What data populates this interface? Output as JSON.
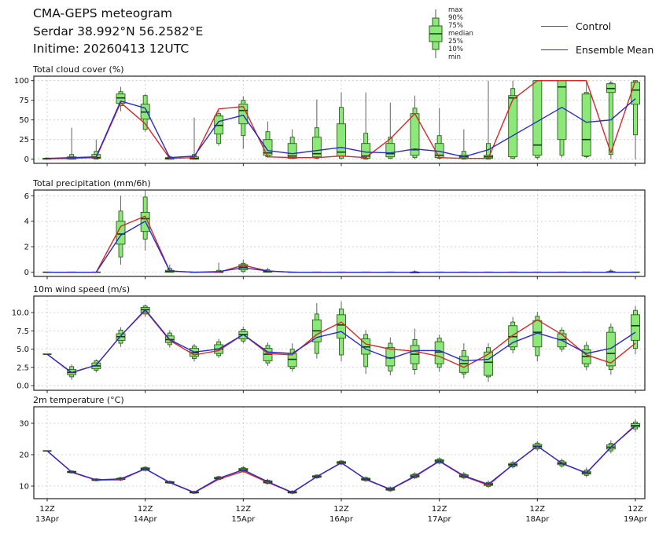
{
  "header": {
    "line1": "CMA-GEPS meteogram",
    "line2": "Serdar 38.992°N 56.2582°E",
    "line3": "Initime: 20260413 12UTC"
  },
  "legend": {
    "box_labels": [
      "max",
      "90%",
      "75%",
      "median",
      "25%",
      "10%",
      "min"
    ],
    "entries": [
      {
        "label": "Control",
        "color": "#d42a2a"
      },
      {
        "label": "Ensemble Mean",
        "color": "#2b2bc8"
      }
    ]
  },
  "colors": {
    "box_fill": "#8ce878",
    "box_edge": "#2f5d1f",
    "median": "#123c12",
    "whisker": "#707070",
    "control": "#d42a2a",
    "mean": "#2b2bc8",
    "grid": "#c9c9c9"
  },
  "x_axis": {
    "n_points": 25,
    "tick_indices": [
      0,
      4,
      8,
      12,
      16,
      20,
      24
    ],
    "tick_top": "12Z",
    "tick_days": [
      "13Apr",
      "14Apr",
      "15Apr",
      "16Apr",
      "17Apr",
      "18Apr",
      "19Apr"
    ]
  },
  "chart_data": [
    {
      "id": "cloud",
      "type": "box+line",
      "title": "Total cloud cover (%)",
      "ylabel": "%",
      "ylim": [
        -5.3,
        105.7
      ],
      "yticks": [
        {
          "v": 0,
          "label": "0"
        },
        {
          "v": 25,
          "label": "25"
        },
        {
          "v": 50,
          "label": "50"
        },
        {
          "v": 75,
          "label": "75"
        },
        {
          "v": 100,
          "label": "100"
        }
      ],
      "box_order": [
        "min",
        "p10",
        "p25",
        "median",
        "p75",
        "p90",
        "max"
      ],
      "boxes": [
        [
          0,
          0,
          0,
          0.5,
          1,
          1.5,
          2
        ],
        [
          0,
          0,
          0,
          1,
          3,
          6,
          40
        ],
        [
          0,
          0,
          1,
          2,
          6,
          10,
          25
        ],
        [
          61,
          68,
          71,
          78,
          83,
          86,
          92
        ],
        [
          35,
          38,
          51,
          60,
          70,
          81,
          83
        ],
        [
          0,
          0,
          0,
          1,
          2,
          3,
          5
        ],
        [
          0,
          0,
          0,
          1,
          3,
          6,
          53
        ],
        [
          17,
          20,
          32,
          43,
          55,
          58,
          62
        ],
        [
          13,
          30,
          45,
          62,
          70,
          75,
          80
        ],
        [
          2,
          3,
          5,
          8,
          25,
          35,
          48
        ],
        [
          0,
          1,
          1,
          4,
          20,
          28,
          38
        ],
        [
          0,
          1,
          3,
          7,
          28,
          40,
          76
        ],
        [
          0,
          1,
          4,
          9,
          45,
          66,
          85
        ],
        [
          0,
          0,
          1,
          4,
          20,
          33,
          85
        ],
        [
          0,
          1,
          3,
          7,
          20,
          28,
          72
        ],
        [
          0,
          2,
          5,
          12,
          58,
          65,
          81
        ],
        [
          0,
          1,
          2,
          5,
          20,
          30,
          65
        ],
        [
          0,
          0,
          1,
          3,
          5,
          10,
          38
        ],
        [
          0,
          0,
          1,
          3,
          5,
          20,
          100
        ],
        [
          0,
          1,
          3,
          78,
          81,
          90,
          100
        ],
        [
          0,
          2,
          5,
          18,
          100,
          100,
          100
        ],
        [
          2,
          5,
          25,
          92,
          100,
          100,
          100
        ],
        [
          1,
          3,
          4,
          25,
          83,
          85,
          100
        ],
        [
          0,
          6,
          85,
          90,
          96,
          97,
          100
        ],
        [
          0,
          31,
          70,
          88,
          98,
          100,
          100
        ]
      ],
      "series": [
        {
          "name": "Control",
          "values": [
            0.5,
            1,
            2,
            72,
            45,
            1,
            2,
            64,
            67,
            3,
            2,
            2,
            4,
            2,
            26,
            58,
            2,
            1,
            1,
            76,
            100,
            100,
            100,
            8,
            100
          ]
        },
        {
          "name": "Ensemble Mean",
          "values": [
            1,
            2,
            3,
            74,
            65,
            2,
            4,
            48,
            56,
            11,
            7,
            11,
            15,
            9,
            8,
            13,
            10,
            3,
            12,
            30,
            48,
            66,
            47,
            50,
            77
          ]
        }
      ]
    },
    {
      "id": "precip",
      "type": "box+line",
      "title": "Total precipitation (mm/6h)",
      "ylabel": "mm/6h",
      "ylim": [
        -0.33,
        6.45
      ],
      "yticks": [
        {
          "v": 0,
          "label": "0"
        },
        {
          "v": 2,
          "label": "2"
        },
        {
          "v": 4,
          "label": "4"
        },
        {
          "v": 6,
          "label": "6"
        }
      ],
      "box_order": [
        "min",
        "p10",
        "p25",
        "median",
        "p75",
        "p90",
        "max"
      ],
      "boxes": [
        [
          0,
          0,
          0,
          0,
          0,
          0,
          0
        ],
        [
          0,
          0,
          0,
          0,
          0,
          0,
          0
        ],
        [
          0,
          0,
          0,
          0,
          0,
          0,
          0
        ],
        [
          0.6,
          1.2,
          2.2,
          3,
          4,
          4.8,
          6
        ],
        [
          1.7,
          2.6,
          3.2,
          4.2,
          4.7,
          5.9,
          6.4
        ],
        [
          0,
          0,
          0,
          0.05,
          0.15,
          0.3,
          0.6
        ],
        [
          0,
          0,
          0,
          0,
          0,
          0,
          0
        ],
        [
          0,
          0,
          0,
          0,
          0.05,
          0.15,
          0.75
        ],
        [
          0,
          0.05,
          0.2,
          0.4,
          0.6,
          0.7,
          1.0
        ],
        [
          0,
          0,
          0,
          0.05,
          0.1,
          0.2,
          0.35
        ],
        [
          0,
          0,
          0,
          0,
          0,
          0,
          0
        ],
        [
          0,
          0,
          0,
          0,
          0,
          0,
          0
        ],
        [
          0,
          0,
          0,
          0,
          0,
          0,
          0
        ],
        [
          0,
          0,
          0,
          0,
          0,
          0,
          0
        ],
        [
          0,
          0,
          0,
          0,
          0,
          0,
          0
        ],
        [
          0,
          0,
          0,
          0,
          0,
          0.05,
          0.15
        ],
        [
          0,
          0,
          0,
          0,
          0,
          0,
          0
        ],
        [
          0,
          0,
          0,
          0,
          0,
          0,
          0
        ],
        [
          0,
          0,
          0,
          0,
          0,
          0,
          0
        ],
        [
          0,
          0,
          0,
          0,
          0,
          0,
          0
        ],
        [
          0,
          0,
          0,
          0,
          0,
          0,
          0
        ],
        [
          0,
          0,
          0,
          0,
          0,
          0,
          0
        ],
        [
          0,
          0,
          0,
          0,
          0,
          0,
          0
        ],
        [
          0,
          0,
          0,
          0,
          0.05,
          0.1,
          0.25
        ],
        [
          0,
          0,
          0,
          0,
          0,
          0,
          0
        ]
      ],
      "series": [
        {
          "name": "Control",
          "values": [
            0,
            0,
            0,
            3.6,
            4.4,
            0.1,
            0,
            0,
            0.55,
            0.1,
            0,
            0,
            0,
            0,
            0,
            0,
            0,
            0,
            0,
            0,
            0,
            0,
            0,
            0,
            0
          ]
        },
        {
          "name": "Ensemble Mean",
          "values": [
            0,
            0,
            0,
            2.9,
            4.0,
            0.1,
            0,
            0.05,
            0.35,
            0.1,
            0,
            0,
            0,
            0,
            0,
            0,
            0,
            0,
            0,
            0,
            0,
            0,
            0,
            0,
            0
          ]
        }
      ]
    },
    {
      "id": "wind",
      "type": "box+line",
      "title": "10m wind speed (m/s)",
      "ylabel": "m/s",
      "ylim": [
        -0.64,
        12.26
      ],
      "yticks": [
        {
          "v": 0,
          "label": "0.0"
        },
        {
          "v": 2.5,
          "label": "2.5"
        },
        {
          "v": 5,
          "label": "5.0"
        },
        {
          "v": 7.5,
          "label": "7.5"
        },
        {
          "v": 10,
          "label": "10.0"
        }
      ],
      "box_order": [
        "min",
        "p10",
        "p25",
        "median",
        "p75",
        "p90",
        "max"
      ],
      "boxes": [
        [
          4.3,
          4.3,
          4.3,
          4.3,
          4.3,
          4.3,
          4.3
        ],
        [
          0.8,
          1.2,
          1.5,
          1.8,
          2.2,
          2.6,
          2.9
        ],
        [
          1.8,
          2.1,
          2.3,
          2.7,
          3.1,
          3.4,
          3.6
        ],
        [
          5.3,
          5.8,
          6.2,
          6.7,
          7.1,
          7.6,
          8.0
        ],
        [
          9.4,
          9.8,
          10.0,
          10.4,
          10.7,
          10.9,
          11.1
        ],
        [
          5.2,
          5.6,
          5.9,
          6.3,
          6.8,
          7.2,
          7.6
        ],
        [
          3.3,
          3.7,
          4.0,
          4.5,
          5.1,
          5.4,
          5.7
        ],
        [
          3.8,
          4.1,
          4.4,
          5.0,
          5.6,
          6.0,
          6.4
        ],
        [
          5.8,
          6.1,
          6.4,
          7.0,
          7.4,
          7.7,
          8.1
        ],
        [
          2.7,
          3.1,
          3.4,
          4.3,
          5.1,
          5.5,
          5.9
        ],
        [
          1.9,
          2.3,
          2.6,
          3.6,
          4.4,
          5.0,
          5.8
        ],
        [
          3.7,
          4.4,
          6.0,
          7.5,
          9.0,
          9.8,
          11.3
        ],
        [
          3.3,
          4.2,
          6.5,
          8.3,
          9.7,
          10.5,
          11.5
        ],
        [
          1.6,
          2.6,
          4.3,
          5.3,
          6.4,
          7.0,
          7.6
        ],
        [
          1.4,
          2.0,
          2.7,
          3.8,
          5.2,
          5.8,
          6.6
        ],
        [
          1.5,
          2.2,
          3.0,
          4.3,
          5.5,
          6.3,
          7.8
        ],
        [
          1.9,
          2.5,
          3.0,
          4.6,
          6.0,
          6.5,
          7.0
        ],
        [
          1.0,
          1.6,
          1.8,
          3.0,
          4.0,
          4.8,
          5.8
        ],
        [
          0.5,
          1.2,
          1.4,
          3.2,
          4.6,
          5.2,
          5.8
        ],
        [
          4.4,
          4.9,
          5.3,
          6.7,
          8.2,
          8.7,
          9.4
        ],
        [
          3.3,
          4.1,
          5.3,
          7.3,
          8.9,
          9.5,
          10.1
        ],
        [
          4.6,
          5.0,
          5.3,
          6.3,
          7.1,
          7.6,
          8.0
        ],
        [
          2.1,
          2.6,
          3.0,
          4.0,
          4.9,
          5.5,
          6.0
        ],
        [
          1.5,
          2.2,
          2.7,
          4.4,
          7.3,
          8.0,
          8.5
        ],
        [
          4.3,
          5.1,
          6.2,
          8.2,
          9.7,
          10.3,
          10.9
        ]
      ],
      "series": [
        {
          "name": "Control",
          "values": [
            4.3,
            1.75,
            2.8,
            6.8,
            10.3,
            6.2,
            4.2,
            4.8,
            7.0,
            4.4,
            4.2,
            7.0,
            8.7,
            5.7,
            5.0,
            4.7,
            4.0,
            2.5,
            4.3,
            6.9,
            9.0,
            7.0,
            4.2,
            3.1,
            5.8
          ]
        },
        {
          "name": "Ensemble Mean",
          "values": [
            4.3,
            1.8,
            2.8,
            6.8,
            10.4,
            6.3,
            4.6,
            5.0,
            7.0,
            4.6,
            4.4,
            6.6,
            7.4,
            5.0,
            3.7,
            4.8,
            4.8,
            3.4,
            3.6,
            5.9,
            7.2,
            6.2,
            4.4,
            5.1,
            7.3
          ]
        }
      ]
    },
    {
      "id": "temp",
      "type": "box+line",
      "title": "2m temperature (°C)",
      "ylabel": "°C",
      "ylim": [
        6,
        35.25
      ],
      "yticks": [
        {
          "v": 10,
          "label": "10"
        },
        {
          "v": 20,
          "label": "20"
        },
        {
          "v": 30,
          "label": "30"
        }
      ],
      "box_order": [
        "min",
        "p10",
        "p25",
        "median",
        "p75",
        "p90",
        "max"
      ],
      "boxes": [
        [
          21.2,
          21.2,
          21.2,
          21.2,
          21.2,
          21.2,
          21.2
        ],
        [
          14.0,
          14.2,
          14.3,
          14.5,
          14.7,
          14.8,
          15.0
        ],
        [
          11.5,
          11.7,
          11.8,
          12.0,
          12.2,
          12.3,
          12.5
        ],
        [
          11.6,
          11.9,
          12.1,
          12.3,
          12.5,
          12.7,
          12.9
        ],
        [
          14.6,
          15.0,
          15.2,
          15.5,
          15.8,
          16.0,
          16.3
        ],
        [
          10.7,
          10.9,
          11.0,
          11.2,
          11.4,
          11.5,
          11.8
        ],
        [
          7.5,
          7.7,
          7.8,
          8.0,
          8.2,
          8.3,
          8.6
        ],
        [
          11.8,
          12.1,
          12.3,
          12.5,
          12.8,
          13.0,
          13.3
        ],
        [
          14.2,
          14.6,
          14.9,
          15.2,
          15.6,
          15.9,
          16.4
        ],
        [
          10.5,
          10.8,
          11.0,
          11.3,
          11.7,
          11.9,
          12.3
        ],
        [
          7.4,
          7.7,
          7.8,
          8.0,
          8.3,
          8.4,
          8.7
        ],
        [
          12.3,
          12.6,
          12.8,
          13.0,
          13.3,
          13.5,
          13.8
        ],
        [
          16.6,
          17.0,
          17.2,
          17.5,
          17.8,
          18.0,
          18.3
        ],
        [
          11.4,
          11.7,
          11.9,
          12.2,
          12.5,
          12.7,
          13.1
        ],
        [
          8.2,
          8.5,
          8.7,
          9.0,
          9.3,
          9.5,
          9.9
        ],
        [
          12.2,
          12.6,
          12.9,
          13.2,
          13.6,
          13.9,
          14.4
        ],
        [
          16.9,
          17.3,
          17.6,
          18.0,
          18.4,
          18.7,
          19.2
        ],
        [
          12.2,
          12.6,
          12.9,
          13.2,
          13.6,
          13.9,
          14.5
        ],
        [
          9.4,
          9.9,
          10.2,
          10.5,
          10.9,
          11.2,
          11.8
        ],
        [
          15.6,
          16.1,
          16.4,
          16.8,
          17.2,
          17.5,
          18.1
        ],
        [
          21.2,
          21.8,
          22.2,
          22.7,
          23.3,
          23.7,
          24.4
        ],
        [
          15.9,
          16.4,
          16.8,
          17.2,
          17.7,
          18.1,
          18.8
        ],
        [
          12.8,
          13.4,
          13.8,
          14.2,
          14.7,
          15.1,
          15.9
        ],
        [
          20.4,
          21.2,
          21.8,
          22.4,
          23.1,
          23.6,
          24.6
        ],
        [
          27.2,
          28.2,
          28.8,
          29.3,
          29.9,
          30.4,
          31.3
        ]
      ],
      "series": [
        {
          "name": "Control",
          "values": [
            21.2,
            14.4,
            11.9,
            12.0,
            15.5,
            11.1,
            7.9,
            12.2,
            14.7,
            11.2,
            7.9,
            13.0,
            17.5,
            12.1,
            8.9,
            13.0,
            17.9,
            13.1,
            10.3,
            16.8,
            22.7,
            17.3,
            14.1,
            22.3,
            29.5
          ]
        },
        {
          "name": "Ensemble Mean",
          "values": [
            21.2,
            14.5,
            12.0,
            12.3,
            15.5,
            11.2,
            8.0,
            12.5,
            15.2,
            11.4,
            8.0,
            13.0,
            17.4,
            12.2,
            9.0,
            13.2,
            18.0,
            13.3,
            10.6,
            16.8,
            22.8,
            17.2,
            14.2,
            22.4,
            29.2
          ]
        }
      ]
    }
  ]
}
